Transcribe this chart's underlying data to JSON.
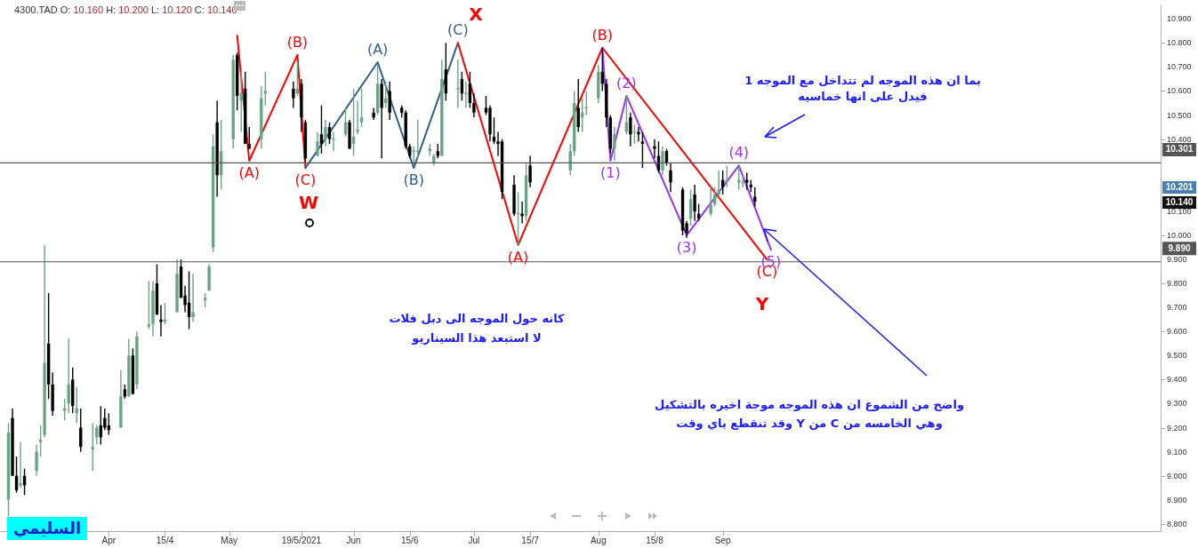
{
  "chart_data": {
    "type": "candlestick",
    "x": [
      "2021-03-07",
      "2021-03-08",
      "2021-03-09",
      "2021-03-10",
      "2021-03-11",
      "2021-03-14",
      "2021-03-15",
      "2021-03-16",
      "2021-03-17",
      "2021-03-18",
      "2021-03-21",
      "2021-03-22",
      "2021-03-23",
      "2021-03-24",
      "2021-03-25",
      "2021-03-28",
      "2021-03-29",
      "2021-03-30",
      "2021-03-31",
      "2021-04-01",
      "2021-04-04",
      "2021-04-05",
      "2021-04-06",
      "2021-04-07",
      "2021-04-08",
      "2021-04-11",
      "2021-04-12",
      "2021-04-13",
      "2021-04-14",
      "2021-04-15",
      "2021-04-18",
      "2021-04-19",
      "2021-04-20",
      "2021-04-21",
      "2021-04-22",
      "2021-04-25",
      "2021-04-26",
      "2021-04-27",
      "2021-04-28",
      "2021-04-29",
      "2021-05-02",
      "2021-05-03",
      "2021-05-04",
      "2021-05-05",
      "2021-05-06",
      "2021-05-09",
      "2021-05-10",
      "2021-05-17",
      "2021-05-18",
      "2021-05-19",
      "2021-05-20",
      "2021-05-23",
      "2021-05-24",
      "2021-05-25",
      "2021-05-26",
      "2021-05-27",
      "2021-05-30",
      "2021-05-31",
      "2021-06-01",
      "2021-06-02",
      "2021-06-03",
      "2021-06-06",
      "2021-06-07",
      "2021-06-08",
      "2021-06-09",
      "2021-06-10",
      "2021-06-13",
      "2021-06-14",
      "2021-06-15",
      "2021-06-16",
      "2021-06-17",
      "2021-06-20",
      "2021-06-21",
      "2021-06-22",
      "2021-06-23",
      "2021-06-24",
      "2021-06-27",
      "2021-06-28",
      "2021-06-29",
      "2021-06-30",
      "2021-07-01",
      "2021-07-04",
      "2021-07-05",
      "2021-07-06",
      "2021-07-07",
      "2021-07-08",
      "2021-07-11",
      "2021-07-12",
      "2021-07-13",
      "2021-07-14",
      "2021-07-15",
      "2021-07-25",
      "2021-07-26",
      "2021-07-27",
      "2021-07-28",
      "2021-07-29",
      "2021-08-01",
      "2021-08-02",
      "2021-08-03",
      "2021-08-04",
      "2021-08-05",
      "2021-08-08",
      "2021-08-09",
      "2021-08-10",
      "2021-08-11",
      "2021-08-12",
      "2021-08-15",
      "2021-08-16",
      "2021-08-17",
      "2021-08-18",
      "2021-08-19",
      "2021-08-22",
      "2021-08-23",
      "2021-08-24",
      "2021-08-25",
      "2021-08-26",
      "2021-08-29",
      "2021-08-30",
      "2021-08-31",
      "2021-09-01",
      "2021-09-02",
      "2021-09-05",
      "2021-09-06",
      "2021-09-07",
      "2021-09-08",
      "2021-09-09"
    ],
    "ohlc": [
      [
        8.9,
        9.22,
        8.83,
        9.18
      ],
      [
        9.24,
        9.28,
        9.0,
        9.0
      ],
      [
        9.0,
        9.08,
        8.93,
        8.94
      ],
      [
        8.96,
        9.14,
        8.95,
        8.97
      ],
      [
        9.0,
        9.03,
        8.92,
        8.96
      ],
      [
        9.02,
        9.13,
        9.0,
        9.1
      ],
      [
        9.14,
        9.21,
        9.08,
        9.15
      ],
      [
        9.17,
        9.96,
        9.16,
        9.47
      ],
      [
        9.55,
        9.76,
        9.32,
        9.38
      ],
      [
        9.38,
        9.43,
        9.25,
        9.27
      ],
      [
        9.27,
        9.32,
        9.23,
        9.28
      ],
      [
        9.3,
        9.57,
        9.26,
        9.38
      ],
      [
        9.4,
        9.45,
        9.26,
        9.29
      ],
      [
        9.26,
        9.37,
        9.22,
        9.28
      ],
      [
        9.2,
        9.28,
        9.1,
        9.12
      ],
      [
        9.11,
        9.22,
        9.02,
        9.12
      ],
      [
        9.16,
        9.21,
        9.13,
        9.2
      ],
      [
        9.21,
        9.29,
        9.13,
        9.16
      ],
      [
        9.24,
        9.28,
        9.19,
        9.2
      ],
      [
        9.21,
        9.26,
        9.17,
        9.19
      ],
      [
        9.2,
        9.44,
        9.2,
        9.33
      ],
      [
        9.36,
        9.38,
        9.32,
        9.33
      ],
      [
        9.33,
        9.57,
        9.33,
        9.5
      ],
      [
        9.5,
        9.53,
        9.34,
        9.34
      ],
      [
        9.38,
        9.6,
        9.36,
        9.58
      ],
      [
        9.62,
        9.81,
        9.61,
        9.63
      ],
      [
        9.63,
        9.81,
        9.58,
        9.77
      ],
      [
        9.8,
        9.88,
        9.67,
        9.67
      ],
      [
        9.65,
        9.71,
        9.58,
        9.64
      ],
      [
        9.64,
        9.72,
        9.63,
        9.65
      ],
      [
        9.68,
        9.9,
        9.68,
        9.84
      ],
      [
        9.87,
        9.9,
        9.74,
        9.74
      ],
      [
        9.75,
        9.79,
        9.68,
        9.71
      ],
      [
        9.72,
        9.85,
        9.61,
        9.66
      ],
      [
        9.66,
        9.84,
        9.64,
        9.68
      ],
      [
        9.73,
        9.76,
        9.7,
        9.74
      ],
      [
        9.77,
        9.88,
        9.77,
        9.87
      ],
      [
        9.95,
        10.42,
        9.93,
        10.37
      ],
      [
        10.47,
        10.56,
        10.16,
        10.25
      ],
      [
        10.25,
        10.48,
        10.19,
        10.35
      ],
      [
        10.4,
        10.75,
        10.36,
        10.73
      ],
      [
        10.75,
        10.76,
        10.52,
        10.58
      ],
      [
        10.56,
        10.68,
        10.43,
        10.59
      ],
      [
        10.61,
        10.68,
        10.38,
        10.38
      ],
      [
        10.38,
        10.45,
        10.36,
        10.36
      ],
      [
        10.4,
        10.62,
        10.36,
        10.57
      ],
      [
        10.59,
        10.68,
        10.54,
        10.6
      ],
      [
        10.61,
        10.64,
        10.53,
        10.57
      ],
      [
        10.59,
        10.72,
        10.58,
        10.61
      ],
      [
        10.63,
        10.65,
        10.43,
        10.49
      ],
      [
        10.47,
        10.48,
        10.3,
        10.32
      ],
      [
        10.33,
        10.43,
        10.33,
        10.39
      ],
      [
        10.42,
        10.54,
        10.34,
        10.38
      ],
      [
        10.4,
        10.48,
        10.37,
        10.45
      ],
      [
        10.45,
        10.47,
        10.38,
        10.4
      ],
      [
        10.4,
        10.43,
        10.35,
        10.4
      ],
      [
        10.42,
        10.53,
        10.41,
        10.47
      ],
      [
        10.47,
        10.48,
        10.36,
        10.36
      ],
      [
        10.38,
        10.61,
        10.33,
        10.41
      ],
      [
        10.43,
        10.56,
        10.42,
        10.44
      ],
      [
        10.47,
        10.61,
        10.45,
        10.49
      ],
      [
        10.51,
        10.53,
        10.48,
        10.49
      ],
      [
        10.51,
        10.71,
        10.5,
        10.63
      ],
      [
        10.63,
        10.65,
        10.32,
        10.53
      ],
      [
        10.55,
        10.64,
        10.53,
        10.57
      ],
      [
        10.6,
        10.64,
        10.48,
        10.51
      ],
      [
        10.53,
        10.54,
        10.49,
        10.51
      ],
      [
        10.51,
        10.52,
        10.36,
        10.37
      ],
      [
        10.37,
        10.38,
        10.32,
        10.33
      ],
      [
        10.35,
        10.37,
        10.29,
        10.35
      ],
      [
        10.35,
        10.48,
        10.32,
        10.35
      ],
      [
        10.35,
        10.38,
        10.33,
        10.36
      ],
      [
        10.3,
        10.34,
        10.29,
        10.33
      ],
      [
        10.35,
        10.38,
        10.32,
        10.33
      ],
      [
        10.33,
        10.73,
        10.33,
        10.65
      ],
      [
        10.69,
        10.8,
        10.56,
        10.59
      ],
      [
        10.61,
        10.73,
        10.53,
        10.61
      ],
      [
        10.65,
        10.68,
        10.56,
        10.59
      ],
      [
        10.59,
        10.64,
        10.53,
        10.59
      ],
      [
        10.63,
        10.68,
        10.53,
        10.55
      ],
      [
        10.55,
        10.59,
        10.49,
        10.51
      ],
      [
        10.53,
        10.58,
        10.5,
        10.51
      ],
      [
        10.53,
        10.54,
        10.39,
        10.42
      ],
      [
        10.41,
        10.49,
        10.38,
        10.39
      ],
      [
        10.39,
        10.43,
        10.33,
        10.38
      ],
      [
        10.39,
        10.4,
        10.15,
        10.18
      ],
      [
        10.21,
        10.25,
        10.08,
        10.09
      ],
      [
        10.09,
        10.18,
        9.96,
        10.09
      ],
      [
        10.09,
        10.14,
        10.05,
        10.08
      ],
      [
        10.08,
        10.3,
        10.06,
        10.25
      ],
      [
        10.29,
        10.33,
        10.2,
        10.22
      ],
      [
        10.27,
        10.38,
        10.25,
        10.35
      ],
      [
        10.35,
        10.6,
        10.33,
        10.55
      ],
      [
        10.53,
        10.65,
        10.43,
        10.45
      ],
      [
        10.49,
        10.57,
        10.43,
        10.51
      ],
      [
        10.53,
        10.6,
        10.5,
        10.53
      ],
      [
        10.57,
        10.71,
        10.55,
        10.68
      ],
      [
        10.68,
        10.78,
        10.6,
        10.63
      ],
      [
        10.63,
        10.65,
        10.45,
        10.49
      ],
      [
        10.49,
        10.5,
        10.34,
        10.36
      ],
      [
        10.36,
        10.45,
        10.31,
        10.42
      ],
      [
        10.43,
        10.58,
        10.42,
        10.47
      ],
      [
        10.49,
        10.51,
        10.37,
        10.42
      ],
      [
        10.43,
        10.46,
        10.38,
        10.43
      ],
      [
        10.43,
        10.45,
        10.39,
        10.42
      ],
      [
        10.39,
        10.43,
        10.28,
        10.38
      ],
      [
        10.37,
        10.4,
        10.32,
        10.36
      ],
      [
        10.33,
        10.39,
        10.26,
        10.27
      ],
      [
        10.27,
        10.37,
        10.25,
        10.35
      ],
      [
        10.35,
        10.36,
        10.29,
        10.3
      ],
      [
        10.27,
        10.3,
        10.18,
        10.22
      ],
      [
        10.19,
        10.2,
        10.0,
        10.02
      ],
      [
        10.05,
        10.06,
        9.99,
        10.01
      ],
      [
        10.07,
        10.19,
        10.04,
        10.15
      ],
      [
        10.17,
        10.21,
        10.06,
        10.1
      ],
      [
        10.09,
        10.13,
        10.06,
        10.07
      ],
      [
        10.09,
        10.2,
        10.08,
        10.13
      ],
      [
        10.13,
        10.2,
        10.12,
        10.17
      ],
      [
        10.17,
        10.27,
        10.16,
        10.19
      ],
      [
        10.23,
        10.27,
        10.17,
        10.2
      ],
      [
        10.22,
        10.29,
        10.2,
        10.23
      ],
      [
        10.22,
        10.29,
        10.19,
        10.23
      ],
      [
        10.22,
        10.25,
        10.2,
        10.22
      ],
      [
        10.23,
        10.26,
        10.19,
        10.22
      ],
      [
        10.21,
        10.23,
        10.18,
        10.2
      ],
      [
        10.16,
        10.2,
        10.12,
        10.14
      ]
    ],
    "colors": [
      "#6aa583",
      "#000000",
      "#000000",
      "#6aa583",
      "#000000",
      "#6aa583",
      "#6aa583",
      "#6aa583",
      "#000000",
      "#000000",
      "#6aa583",
      "#6aa583",
      "#000000",
      "#6aa583",
      "#000000",
      "#6aa583",
      "#6aa583",
      "#000000",
      "#000000",
      "#000000",
      "#6aa583",
      "#000000",
      "#6aa583",
      "#000000",
      "#6aa583",
      "#6aa583",
      "#6aa583",
      "#000000",
      "#000000",
      "#6aa583",
      "#6aa583",
      "#000000",
      "#000000",
      "#000000",
      "#6aa583",
      "#6aa583",
      "#6aa583",
      "#6aa583",
      "#000000",
      "#6aa583",
      "#6aa583",
      "#000000",
      "#6aa583",
      "#000000",
      "#000000",
      "#6aa583",
      "#6aa583",
      "#000000",
      "#6aa583",
      "#000000",
      "#000000",
      "#6aa583",
      "#000000",
      "#6aa583",
      "#000000",
      "#6aa583",
      "#6aa583",
      "#000000",
      "#6aa583",
      "#6aa583",
      "#6aa583",
      "#000000",
      "#6aa583",
      "#000000",
      "#6aa583",
      "#000000",
      "#000000",
      "#000000",
      "#000000",
      "#6aa583",
      "#6aa583",
      "#6aa583",
      "#6aa583",
      "#000000",
      "#6aa583",
      "#000000",
      "#6aa583",
      "#000000",
      "#6aa583",
      "#000000",
      "#000000",
      "#000000",
      "#000000",
      "#000000",
      "#000000",
      "#000000",
      "#000000",
      "#6aa583",
      "#000000",
      "#6aa583",
      "#000000",
      "#6aa583",
      "#6aa583",
      "#000000",
      "#6aa583",
      "#6aa583",
      "#6aa583",
      "#000000",
      "#000000",
      "#000000",
      "#6aa583",
      "#6aa583",
      "#000000",
      "#6aa583",
      "#000000",
      "#000000",
      "#000000",
      "#000000",
      "#6aa583",
      "#000000",
      "#000000",
      "#000000",
      "#000000",
      "#6aa583",
      "#000000",
      "#000000",
      "#6aa583",
      "#6aa583",
      "#6aa583",
      "#000000",
      "#6aa583",
      "#6aa583",
      "#6aa583",
      "#000000",
      "#000000",
      "#000000"
    ],
    "series": [
      {
        "type": "line",
        "color": "#ff0000",
        "x": [
          "2021-05-03",
          "2021-05-06",
          "2021-05-18",
          "2021-05-20"
        ],
        "values": [
          10.83,
          10.31,
          10.75,
          10.28
        ]
      },
      {
        "type": "line",
        "color": "#2f5f8a",
        "x": [
          "2021-05-20",
          "2021-06-07",
          "2021-06-16",
          "2021-06-27"
        ],
        "values": [
          10.28,
          10.72,
          10.28,
          10.8
        ]
      },
      {
        "type": "line",
        "color": "#ff0000",
        "x": [
          "2021-06-27",
          "2021-07-12",
          "2021-08-02",
          "2021-09-12"
        ],
        "values": [
          10.8,
          9.96,
          10.78,
          9.9
        ]
      },
      {
        "type": "line",
        "color": "#9b30ff",
        "x": [
          "2021-08-02",
          "2021-08-04",
          "2021-08-08",
          "2021-08-23",
          "2021-09-05",
          "2021-09-13"
        ],
        "values": [
          10.78,
          10.31,
          10.58,
          10.0,
          10.29,
          9.94
        ]
      }
    ],
    "xlim": [
      "2021-03-06",
      "2021-12-18"
    ],
    "xticks": [
      {
        "value": "2021-04-01",
        "label": "Apr"
      },
      {
        "value": "2021-04-15",
        "label": "15/4"
      },
      {
        "value": "2021-05-01",
        "label": "May"
      },
      {
        "value": "2021-05-19",
        "label": "19/5/2021"
      },
      {
        "value": "2021-06-01",
        "label": "Jun"
      },
      {
        "value": "2021-06-15",
        "label": "15/6"
      },
      {
        "value": "2021-07-01",
        "label": "Jul"
      },
      {
        "value": "2021-07-15",
        "label": "15/7"
      },
      {
        "value": "2021-08-01",
        "label": "Aug"
      },
      {
        "value": "2021-08-15",
        "label": "15/8"
      },
      {
        "value": "2021-09-01",
        "label": "Sep"
      }
    ],
    "ylim": [
      8.77,
      10.96
    ],
    "yticks": [
      {
        "value": 8.8,
        "label": "8.800"
      },
      {
        "value": 8.9,
        "label": "8.900"
      },
      {
        "value": 9.0,
        "label": "9.000"
      },
      {
        "value": 9.1,
        "label": "9.100"
      },
      {
        "value": 9.2,
        "label": "9.200"
      },
      {
        "value": 9.3,
        "label": "9.300"
      },
      {
        "value": 9.4,
        "label": "9.400"
      },
      {
        "value": 9.5,
        "label": "9.500"
      },
      {
        "value": 9.6,
        "label": "9.600"
      },
      {
        "value": 9.7,
        "label": "9.700"
      },
      {
        "value": 9.8,
        "label": "9.800"
      },
      {
        "value": 9.9,
        "label": "9.900"
      },
      {
        "value": 10.0,
        "label": "10.000"
      },
      {
        "value": 10.1,
        "label": "10.100"
      },
      {
        "value": 10.2,
        "label": null
      },
      {
        "value": 10.3,
        "label": null
      },
      {
        "value": 10.4,
        "label": "10.400"
      },
      {
        "value": 10.5,
        "label": "10.500"
      },
      {
        "value": 10.6,
        "label": "10.600"
      },
      {
        "value": 10.7,
        "label": "10.700"
      },
      {
        "value": 10.8,
        "label": "10.800"
      },
      {
        "value": 10.9,
        "label": "10.900"
      }
    ],
    "ref_lines": [
      {
        "axis": "y",
        "value": 10.301,
        "label": "10.301",
        "color": "#555555"
      },
      {
        "axis": "y",
        "value": 9.89,
        "label": "9.890",
        "color": "#555555"
      }
    ],
    "annotations": [
      "4300.TAD O: 10.160 H: 10.200 L: 10.120 C: 10.140",
      "بما ان هذه الموجه لم تتداخل مع الموجه 1",
      "فيدل على انها خماسيه",
      "كانه حول الموجه الى دبل فلات",
      "لا استبعد هذا السيناريو",
      "واضح من الشموع ان هذه الموجه موجة اخيره بالتشكيل",
      "وهي الخامسه من C من Y وقد تنقطع باي وقت",
      "السليمي",
      "W",
      "X",
      "Y",
      "10.201",
      "10.140",
      {
        "text": "(A)",
        "x": "2021-05-06",
        "y": 10.31
      },
      {
        "text": "(B)",
        "x": "2021-05-18",
        "y": 10.75
      },
      {
        "text": "(C)",
        "x": "2021-05-20",
        "y": 10.28
      },
      {
        "text": "(A)",
        "x": "2021-06-07",
        "y": 10.72
      },
      {
        "text": "(B)",
        "x": "2021-06-16",
        "y": 10.28
      },
      {
        "text": "(C)",
        "x": "2021-06-27",
        "y": 10.8
      },
      {
        "text": "(A)",
        "x": "2021-07-12",
        "y": 9.96
      },
      {
        "text": "(B)",
        "x": "2021-08-02",
        "y": 10.78
      },
      {
        "text": "(C)",
        "x": "2021-09-12",
        "y": 9.9
      },
      {
        "text": "(1)",
        "x": "2021-08-04",
        "y": 10.31
      },
      {
        "text": "(2)",
        "x": "2021-08-08",
        "y": 10.58
      },
      {
        "text": "(3)",
        "x": "2021-08-23",
        "y": 10.0
      },
      {
        "text": "(4)",
        "x": "2021-09-05",
        "y": 10.29
      },
      {
        "text": "(5)",
        "x": "2021-09-13",
        "y": 9.94
      }
    ]
  }
}
